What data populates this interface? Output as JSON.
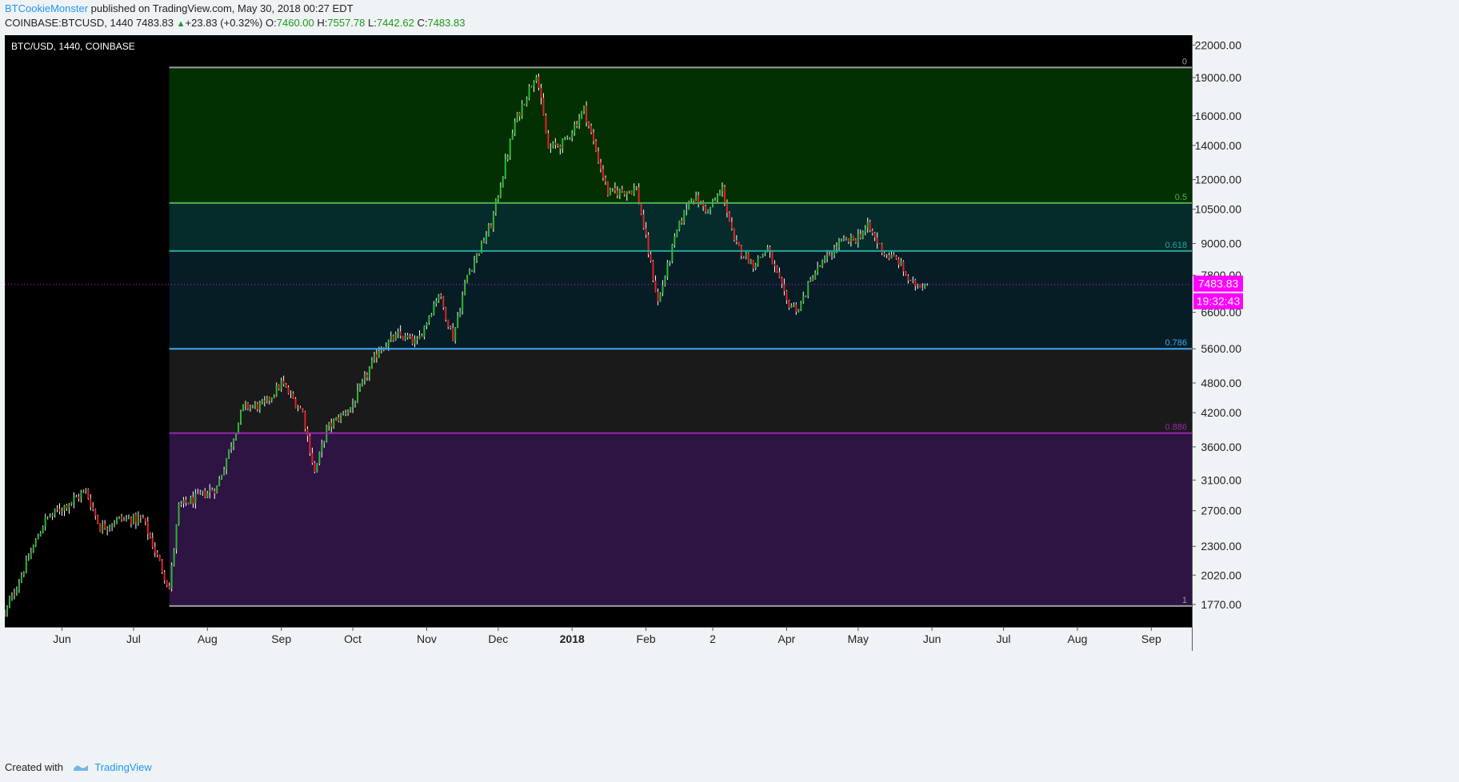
{
  "header": {
    "author": "BTCookieMonster",
    "published_text": "published on TradingView.com, May 30, 2018 00:27 EDT",
    "symbol_line": "COINBASE:BTCUSD, 1440",
    "last": "7483.83",
    "change": "+23.83 (+0.32%)",
    "o_label": "O:",
    "o": "7460.00",
    "h_label": "H:",
    "h": "7557.78",
    "l_label": "L:",
    "l": "7442.62",
    "c_label": "C:",
    "c": "7483.83"
  },
  "footer": {
    "created_with": "Created with",
    "brand": "TradingView"
  },
  "colors": {
    "up": "#2eb82e",
    "down": "#e32222",
    "wick": "#ffffff",
    "badge": "#ff00ff",
    "bg": "#000000",
    "axis_text": "#222222"
  },
  "chart_data": {
    "type": "candlestick",
    "title": "BTC/USD, 1440, COINBASE",
    "scale": "log",
    "ylim": [
      1600,
      23000
    ],
    "x_range": [
      "2017-05-08",
      "2018-09-18"
    ],
    "y_ticks": [
      "22000.00",
      "19000.00",
      "16000.00",
      "14000.00",
      "12000.00",
      "10500.00",
      "9000.00",
      "7800.00",
      "6600.00",
      "5600.00",
      "4800.00",
      "4200.00",
      "3600.00",
      "3100.00",
      "2700.00",
      "2300.00",
      "2020.00",
      "1770.00"
    ],
    "x_ticks": [
      {
        "label": "Jun",
        "date": "2017-06-01",
        "bold": false
      },
      {
        "label": "Jul",
        "date": "2017-07-01",
        "bold": false
      },
      {
        "label": "Aug",
        "date": "2017-08-01",
        "bold": false
      },
      {
        "label": "Sep",
        "date": "2017-09-01",
        "bold": false
      },
      {
        "label": "Oct",
        "date": "2017-10-01",
        "bold": false
      },
      {
        "label": "Nov",
        "date": "2017-11-01",
        "bold": false
      },
      {
        "label": "Dec",
        "date": "2017-12-01",
        "bold": false
      },
      {
        "label": "2018",
        "date": "2018-01-01",
        "bold": true
      },
      {
        "label": "Feb",
        "date": "2018-02-01",
        "bold": false
      },
      {
        "label": "2",
        "date": "2018-03-01",
        "bold": false
      },
      {
        "label": "Apr",
        "date": "2018-04-01",
        "bold": false
      },
      {
        "label": "May",
        "date": "2018-05-01",
        "bold": false
      },
      {
        "label": "Jun",
        "date": "2018-06-01",
        "bold": false
      },
      {
        "label": "Jul",
        "date": "2018-07-01",
        "bold": false
      },
      {
        "label": "Aug",
        "date": "2018-08-01",
        "bold": false
      },
      {
        "label": "Sep",
        "date": "2018-09-01",
        "bold": false
      }
    ],
    "fib": {
      "start_date": "2017-07-16",
      "end_date": "2018-09-18",
      "levels": [
        {
          "label": "0",
          "price": 19891,
          "color": "#9e9e9e"
        },
        {
          "label": "0.5",
          "price": 10800,
          "color": "#4caf50"
        },
        {
          "label": "0.618",
          "price": 8700,
          "color": "#26a69a"
        },
        {
          "label": "0.786",
          "price": 5600,
          "color": "#42a5f5"
        },
        {
          "label": "0.886",
          "price": 3830,
          "color": "#9c27b0"
        },
        {
          "label": "1",
          "price": 1758,
          "color": "#9e9e9e"
        }
      ],
      "zones": [
        {
          "from": 19891,
          "to": 10800,
          "color": "#033003"
        },
        {
          "from": 10800,
          "to": 8700,
          "color": "#062b2b"
        },
        {
          "from": 8700,
          "to": 5600,
          "color": "#071d26"
        },
        {
          "from": 5600,
          "to": 3830,
          "color": "#1a1a1a"
        },
        {
          "from": 3830,
          "to": 1758,
          "color": "#2d1442"
        }
      ]
    },
    "last_price": "7483.83",
    "countdown": "19:32:43",
    "price_anchors": [
      [
        "2017-05-08",
        1700
      ],
      [
        "2017-05-25",
        2600
      ],
      [
        "2017-06-11",
        2950
      ],
      [
        "2017-06-17",
        2500
      ],
      [
        "2017-06-25",
        2600
      ],
      [
        "2017-07-05",
        2600
      ],
      [
        "2017-07-16",
        1900
      ],
      [
        "2017-07-20",
        2750
      ],
      [
        "2017-08-05",
        3000
      ],
      [
        "2017-08-16",
        4300
      ],
      [
        "2017-08-25",
        4350
      ],
      [
        "2017-09-01",
        4800
      ],
      [
        "2017-09-10",
        4200
      ],
      [
        "2017-09-15",
        3200
      ],
      [
        "2017-09-20",
        3900
      ],
      [
        "2017-10-01",
        4350
      ],
      [
        "2017-10-12",
        5600
      ],
      [
        "2017-10-20",
        5950
      ],
      [
        "2017-10-28",
        5750
      ],
      [
        "2017-11-06",
        7200
      ],
      [
        "2017-11-12",
        5900
      ],
      [
        "2017-11-18",
        7800
      ],
      [
        "2017-11-28",
        9800
      ],
      [
        "2017-12-08",
        15500
      ],
      [
        "2017-12-17",
        19500
      ],
      [
        "2017-12-22",
        13800
      ],
      [
        "2017-12-29",
        14200
      ],
      [
        "2018-01-06",
        16500
      ],
      [
        "2018-01-16",
        11300
      ],
      [
        "2018-01-28",
        11500
      ],
      [
        "2018-02-06",
        6900
      ],
      [
        "2018-02-14",
        9500
      ],
      [
        "2018-02-20",
        11200
      ],
      [
        "2018-02-27",
        10400
      ],
      [
        "2018-03-05",
        11500
      ],
      [
        "2018-03-10",
        9000
      ],
      [
        "2018-03-18",
        8200
      ],
      [
        "2018-03-24",
        8800
      ],
      [
        "2018-04-01",
        6900
      ],
      [
        "2018-04-06",
        6700
      ],
      [
        "2018-04-12",
        7800
      ],
      [
        "2018-04-23",
        9000
      ],
      [
        "2018-04-30",
        9200
      ],
      [
        "2018-05-05",
        9700
      ],
      [
        "2018-05-12",
        8600
      ],
      [
        "2018-05-18",
        8300
      ],
      [
        "2018-05-23",
        7500
      ],
      [
        "2018-05-30",
        7483.83
      ]
    ],
    "candle_dates": [
      "2017-05-08",
      "2018-05-30"
    ]
  }
}
